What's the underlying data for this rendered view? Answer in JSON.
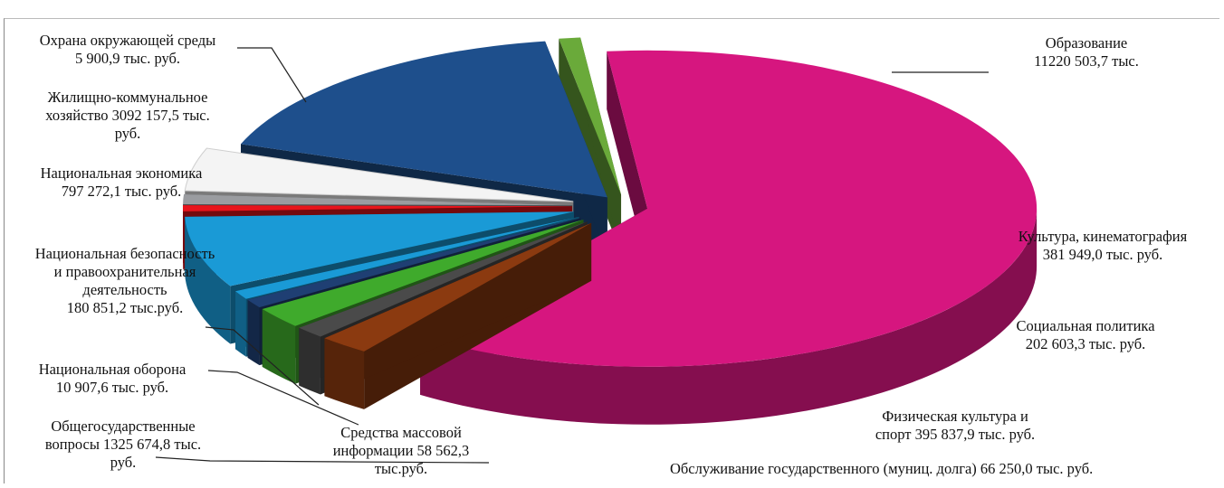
{
  "chart_data": {
    "type": "pie",
    "title": "",
    "legend": "none",
    "style": "3d-exploded",
    "slices": [
      {
        "name": "Образование",
        "value": 11220503.7,
        "value_label": "11220 503,7 тыс.",
        "color": "#d6167f"
      },
      {
        "name": "Культура, кинематография",
        "value": 381949.0,
        "value_label": "381 949,0 тыс. руб.",
        "color": "#8b3a10"
      },
      {
        "name": "Социальная политика",
        "value": 202603.3,
        "value_label": "202 603,3 тыс. руб.",
        "color": "#4a4a4a"
      },
      {
        "name": "Физическая культура и спорт",
        "value": 395837.9,
        "value_label": "395 837,9 тыс. руб.",
        "color": "#3faa2c"
      },
      {
        "name": "Обслуживание государственного (муниц. долга)",
        "value": 66250.0,
        "value_label": "66 250,0 тыс. руб.",
        "color": "#1f3f73"
      },
      {
        "name": "Средства массовой информации",
        "value": 58562.3,
        "value_label": "58 562,3 тыс.руб.",
        "color": "#1a9ad6"
      },
      {
        "name": "Общегосударственные вопросы",
        "value": 1325674.8,
        "value_label": "1325 674,8 тыс. руб.",
        "color": "#1a9ad6"
      },
      {
        "name": "Национальная оборона",
        "value": 10907.6,
        "value_label": "10 907,6 тыс. руб.",
        "color": "#e8141c"
      },
      {
        "name": "Национальная безопасность и правоохранительная деятельность",
        "value": 180851.2,
        "value_label": "180 851,2 тыс.руб.",
        "color": "#9a9ca0"
      },
      {
        "name": "Национальная экономика",
        "value": 797272.1,
        "value_label": "797 272,1 тыс. руб.",
        "color": "#f4f4f4"
      },
      {
        "name": "Жилищно-коммунальное хозяйство",
        "value": 3092157.5,
        "value_label": "3092 157,5 тыс. руб.",
        "color": "#1e4f8c"
      },
      {
        "name": "Охрана окружающей среды",
        "value": 5900.9,
        "value_label": "5 900,9 тыс. руб.",
        "color": "#6aaa3a"
      }
    ]
  },
  "labels": {
    "ohrana": [
      "Охрана окружающей среды",
      "5 900,9 тыс. руб."
    ],
    "zhkh": [
      "Жилищно-коммунальное",
      "хозяйство 3092 157,5 тыс.",
      "руб."
    ],
    "econ": [
      "Национальная экономика",
      "797 272,1 тыс. руб."
    ],
    "bezop": [
      "Национальная безопасность",
      "и правоохранительная",
      "деятельность",
      "180 851,2 тыс.руб."
    ],
    "oborona": [
      "Национальная оборона",
      "10 907,6 тыс. руб."
    ],
    "obshch": [
      "Общегосударственные",
      "вопросы 1325 674,8 тыс.",
      "руб."
    ],
    "smi": [
      "Средства массовой",
      "информации 58 562,3",
      "тыс.руб."
    ],
    "obraz": [
      "Образование",
      "11220 503,7 тыс."
    ],
    "kult": [
      "Культура, кинематография",
      "381 949,0 тыс. руб."
    ],
    "soc": [
      "Социальная политика",
      "202 603,3 тыс. руб."
    ],
    "sport": [
      "Физическая культура и",
      "спорт  395 837,9 тыс. руб."
    ],
    "dolg": [
      "Обслуживание государственного (муниц. долга) 66 250,0 тыс. руб."
    ]
  }
}
